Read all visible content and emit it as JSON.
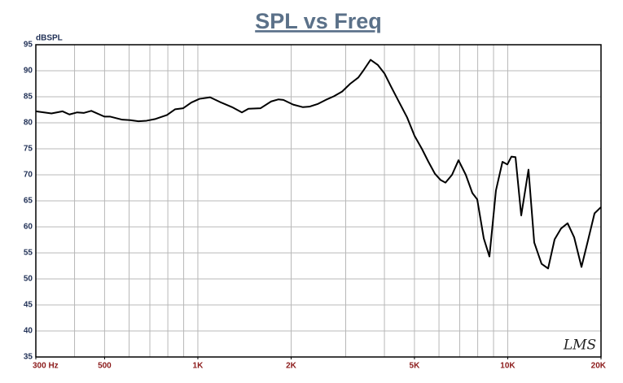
{
  "chart_data": {
    "type": "line",
    "title": "SPL vs Freq",
    "y_label": "dBSPL",
    "watermark": "LMS",
    "x": [
      300,
      337,
      366,
      385,
      408,
      429,
      453,
      499,
      520,
      570,
      605,
      643,
      683,
      726,
      795,
      845,
      897,
      953,
      1012,
      1095,
      1178,
      1290,
      1387,
      1456,
      1594,
      1724,
      1821,
      1888,
      2030,
      2183,
      2291,
      2434,
      2587,
      2748,
      2920,
      3102,
      3295,
      3417,
      3609,
      3811,
      4000,
      4198,
      4459,
      4737,
      5003,
      5284,
      5548,
      5823,
      6074,
      6297,
      6610,
      6937,
      7323,
      7688,
      7971,
      8368,
      8729,
      9162,
      9617,
      9974,
      10279,
      10595,
      11054,
      11668,
      12176,
      12857,
      13498,
      14167,
      14869,
      15605,
      16381,
      17298,
      18157,
      19059,
      20000
    ],
    "series": [
      {
        "color": "#000000",
        "values": [
          82.2,
          81.8,
          82.2,
          81.6,
          82.0,
          81.9,
          82.3,
          81.2,
          81.2,
          80.6,
          80.5,
          80.3,
          80.4,
          80.7,
          81.5,
          82.6,
          82.8,
          83.9,
          84.6,
          84.9,
          84.0,
          83.0,
          82.0,
          82.7,
          82.8,
          84.1,
          84.5,
          84.4,
          83.5,
          83.0,
          83.1,
          83.6,
          84.4,
          85.1,
          86.0,
          87.5,
          88.7,
          90.0,
          92.1,
          91.1,
          89.5,
          87.0,
          84.0,
          81.0,
          77.5,
          75.0,
          72.5,
          70.2,
          69.0,
          68.5,
          70.0,
          72.8,
          70.0,
          66.5,
          65.3,
          57.8,
          54.3,
          67.0,
          72.5,
          72.0,
          73.5,
          73.4,
          62.2,
          71.0,
          57.0,
          52.9,
          52.0,
          57.6,
          59.7,
          60.7,
          58.0,
          52.3,
          57.4,
          62.6,
          63.8
        ]
      }
    ],
    "x_log": true,
    "xlim": [
      300,
      20000
    ],
    "xticks": [
      {
        "value": 300,
        "label": "300 Hz"
      },
      500,
      {
        "value": 1000,
        "label": "1K"
      },
      {
        "value": 2000,
        "label": "2K"
      },
      {
        "value": 5000,
        "label": "5K"
      },
      {
        "value": 10000,
        "label": "10K"
      },
      {
        "value": 20000,
        "label": "20K"
      }
    ],
    "xgrid": [
      300,
      400,
      500,
      600,
      700,
      800,
      900,
      1000,
      2000,
      3000,
      4000,
      5000,
      6000,
      7000,
      8000,
      9000,
      10000,
      20000
    ],
    "ylim": [
      35,
      95
    ],
    "yticks": [
      35,
      40,
      45,
      50,
      55,
      60,
      65,
      70,
      75,
      80,
      85,
      90,
      95
    ],
    "grid": true
  }
}
